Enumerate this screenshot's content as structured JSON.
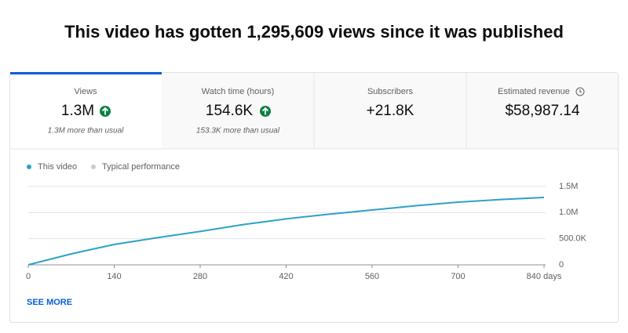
{
  "header": {
    "title": "This video has gotten 1,295,609 views since it was published"
  },
  "metrics": [
    {
      "label": "Views",
      "value": "1.3M",
      "note": "1.3M more than usual"
    },
    {
      "label": "Watch time (hours)",
      "value": "154.6K",
      "note": "153.3K more than usual"
    },
    {
      "label": "Subscribers",
      "value": "+21.8K"
    },
    {
      "label": "Estimated revenue",
      "value": "$58,987.14"
    }
  ],
  "chart_data": {
    "type": "line",
    "x": [
      0,
      70,
      140,
      210,
      280,
      350,
      420,
      490,
      560,
      630,
      700,
      770,
      840
    ],
    "series": [
      {
        "name": "This video",
        "color": "#2ea1c8",
        "values": [
          0,
          210000,
          390000,
          520000,
          640000,
          770000,
          880000,
          970000,
          1050000,
          1130000,
          1200000,
          1250000,
          1290000
        ]
      },
      {
        "name": "Typical performance",
        "color": "#cccccc",
        "values": [
          null,
          null,
          null,
          null,
          null,
          null,
          null,
          null,
          null,
          null,
          null,
          null,
          null
        ]
      }
    ],
    "xlim": [
      0,
      840
    ],
    "xticks": [
      0,
      140,
      280,
      420,
      560,
      700,
      {
        "value": 840,
        "label": "840 days"
      }
    ],
    "ylim": [
      0,
      1500000
    ],
    "yticks": [
      0,
      {
        "value": 500000,
        "label": "500.0K"
      },
      {
        "value": 1000000,
        "label": "1.0M"
      },
      {
        "value": 1500000,
        "label": "1.5M"
      }
    ],
    "grid": true
  },
  "link": "SEE MORE"
}
